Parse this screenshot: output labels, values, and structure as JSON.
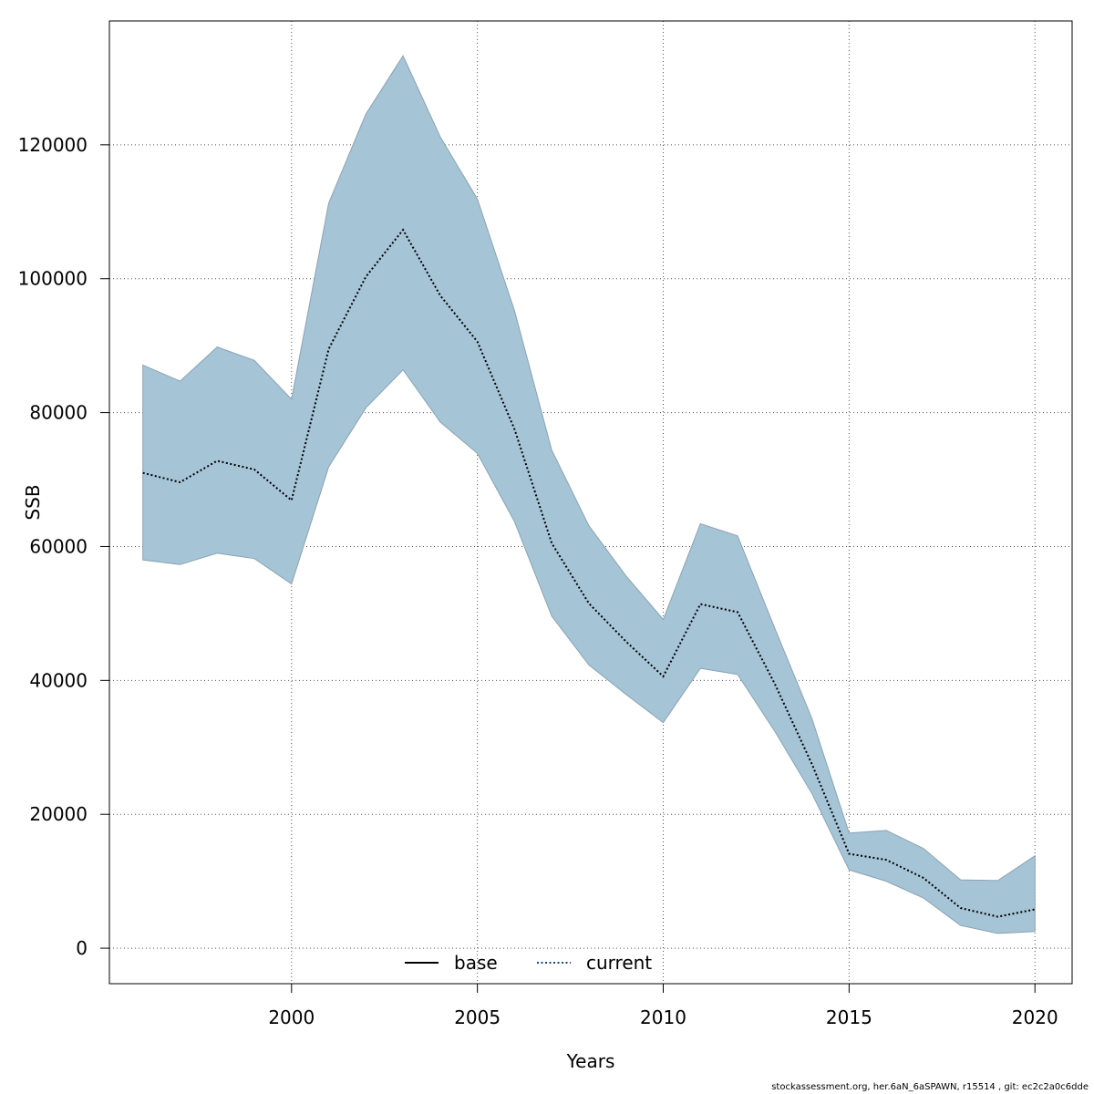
{
  "chart_data": {
    "type": "area",
    "xlabel": "Years",
    "ylabel": "SSB",
    "xlim": [
      1995.1,
      2021.0
    ],
    "ylim": [
      -5300,
      138500
    ],
    "x_ticks": [
      2000,
      2005,
      2010,
      2015,
      2020
    ],
    "y_ticks": [
      0,
      20000,
      40000,
      60000,
      80000,
      100000,
      120000
    ],
    "grid": true,
    "legend_position": "bottom-center",
    "legend": [
      {
        "label": "base",
        "style": "solid",
        "color": "#000000"
      },
      {
        "label": "current",
        "style": "dotted",
        "color": "#0b4f7a"
      }
    ],
    "band_color": "#a5c4d6",
    "x": [
      1996,
      1997,
      1998,
      1999,
      2000,
      2001,
      2002,
      2003,
      2004,
      2005,
      2006,
      2007,
      2008,
      2009,
      2010,
      2011,
      2012,
      2013,
      2014,
      2015,
      2016,
      2017,
      2018,
      2019,
      2020
    ],
    "series": [
      {
        "name": "current",
        "values": [
          71000,
          69600,
          72800,
          71500,
          66900,
          89500,
          100300,
          107300,
          97500,
          90600,
          77500,
          60500,
          51500,
          45800,
          40600,
          51400,
          50200,
          39500,
          27500,
          14100,
          13200,
          10500,
          6000,
          4700,
          5800
        ]
      }
    ],
    "band": {
      "upper": [
        87100,
        84700,
        89800,
        87800,
        82000,
        111300,
        124600,
        133300,
        121200,
        111900,
        95200,
        74400,
        63100,
        55600,
        49100,
        63400,
        61600,
        47800,
        34300,
        17200,
        17600,
        14900,
        10200,
        10100,
        13800
      ],
      "lower": [
        58000,
        57300,
        59000,
        58200,
        54400,
        71900,
        80700,
        86400,
        78600,
        73900,
        63700,
        49600,
        42300,
        37900,
        33700,
        41800,
        40900,
        32400,
        23100,
        11700,
        10000,
        7500,
        3400,
        2200,
        2500
      ]
    }
  },
  "footer": {
    "note": "stockassessment.org, her.6aN_6aSPAWN, r15514 , git: ec2c2a0c6dde"
  }
}
